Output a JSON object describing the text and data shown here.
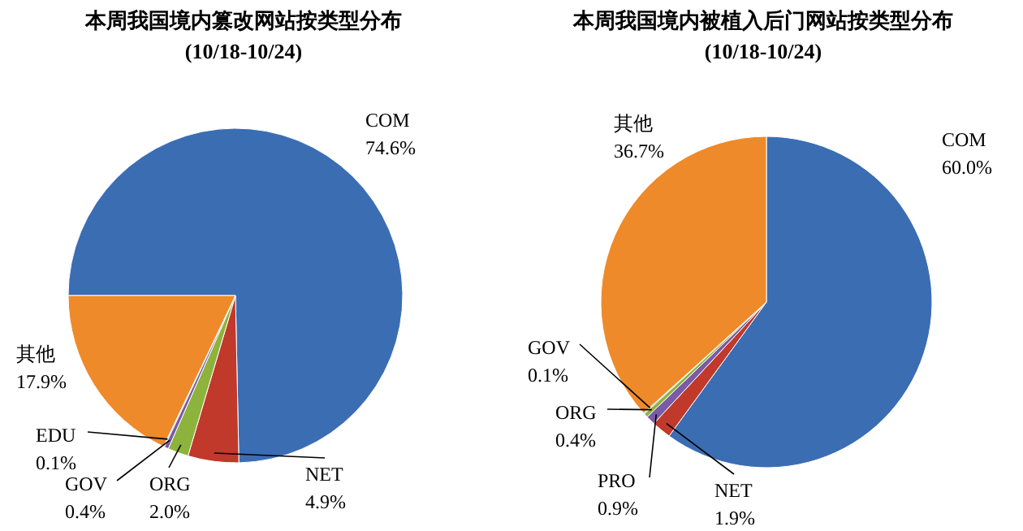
{
  "chart_data": [
    {
      "type": "pie",
      "title": "本周我国境内篡改网站按类型分布",
      "subtitle": "(10/18-10/24)",
      "categories": [
        "COM",
        "NET",
        "ORG",
        "GOV",
        "EDU",
        "其他"
      ],
      "values": [
        74.6,
        4.9,
        2.0,
        0.4,
        0.1,
        17.9
      ],
      "value_labels": [
        "74.6%",
        "4.9%",
        "2.0%",
        "0.4%",
        "0.1%",
        "17.9%"
      ],
      "colors": [
        "#3b6db3",
        "#c0392b",
        "#8db33c",
        "#7a5ba6",
        "#45a9c4",
        "#ee8a2a"
      ]
    },
    {
      "type": "pie",
      "title": "本周我国境内被植入后门网站按类型分布",
      "subtitle": "(10/18-10/24)",
      "categories": [
        "COM",
        "NET",
        "PRO",
        "ORG",
        "GOV",
        "其他"
      ],
      "values": [
        60.0,
        1.9,
        0.9,
        0.4,
        0.1,
        36.7
      ],
      "value_labels": [
        "60.0%",
        "1.9%",
        "0.9%",
        "0.4%",
        "0.1%",
        "36.7%"
      ],
      "colors": [
        "#3b6db3",
        "#c0392b",
        "#7a5ba6",
        "#8db33c",
        "#45a9c4",
        "#ee8a2a"
      ]
    }
  ]
}
